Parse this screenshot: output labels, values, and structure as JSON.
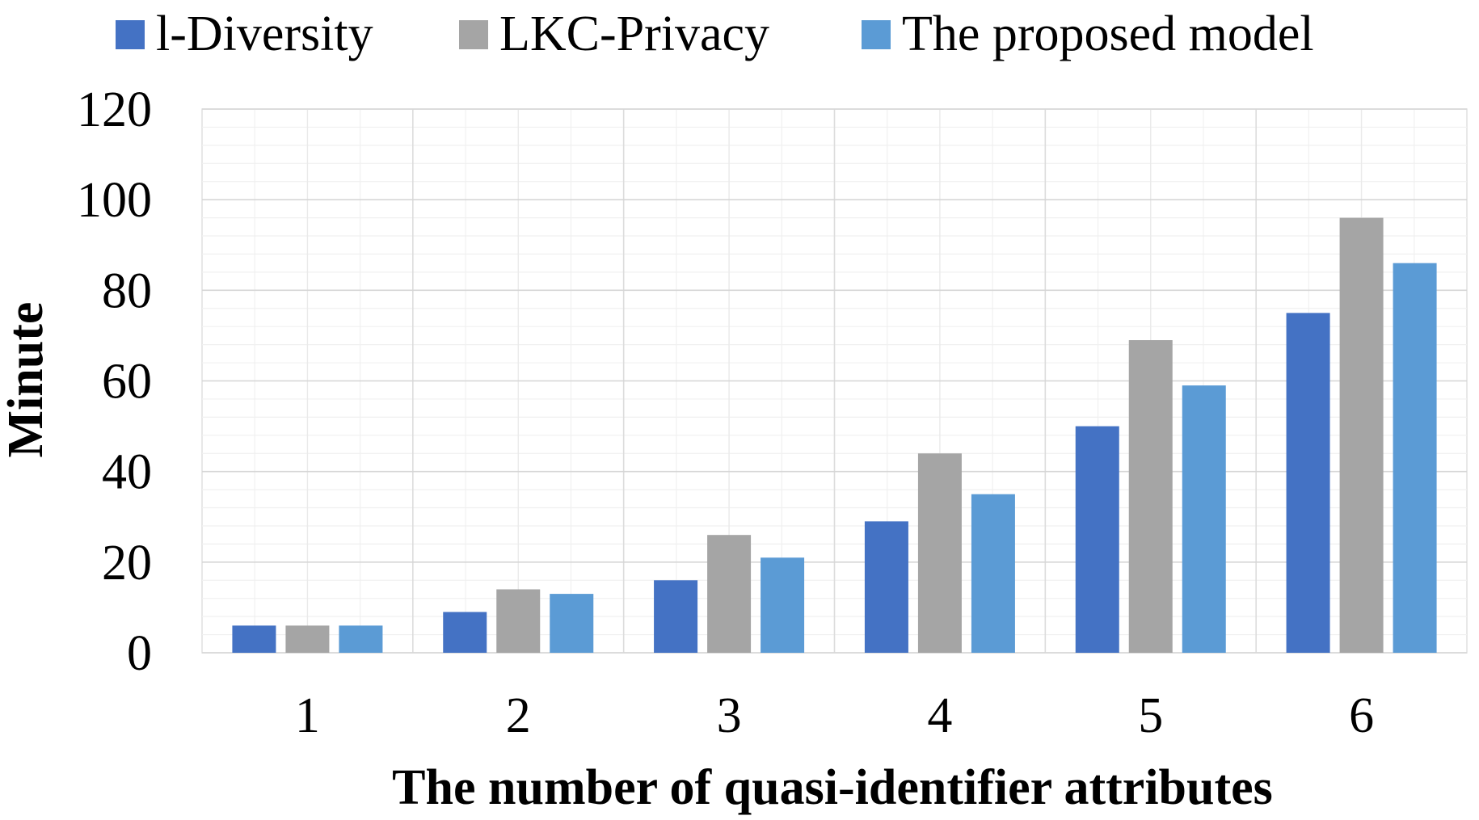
{
  "chart_data": {
    "type": "bar",
    "categories": [
      "1",
      "2",
      "3",
      "4",
      "5",
      "6"
    ],
    "series": [
      {
        "name": "l-Diversity",
        "color": "#4472C4",
        "values": [
          6,
          9,
          16,
          29,
          50,
          75
        ]
      },
      {
        "name": "LKC-Privacy",
        "color": "#A5A5A5",
        "values": [
          6,
          14,
          26,
          44,
          69,
          96
        ]
      },
      {
        "name": "The proposed model",
        "color": "#5B9BD5",
        "values": [
          6,
          13,
          21,
          35,
          59,
          86
        ]
      }
    ],
    "xlabel": "The number of quasi-identifier attributes",
    "ylabel": "Minute",
    "ylim": [
      0,
      120
    ],
    "yticks": [
      "0",
      "20",
      "40",
      "60",
      "80",
      "100",
      "120"
    ],
    "grid": true,
    "minor_grid": true,
    "legend_position": "top"
  }
}
